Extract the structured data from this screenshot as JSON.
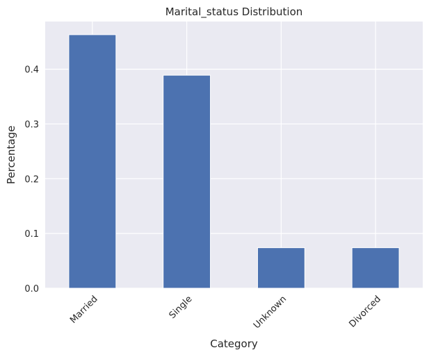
{
  "chart_data": {
    "type": "bar",
    "title": "Marital_status Distribution",
    "xlabel": "Category",
    "ylabel": "Percentage",
    "categories": [
      "Married",
      "Single",
      "Unknown",
      "Divorced"
    ],
    "values": [
      0.463,
      0.389,
      0.074,
      0.074
    ],
    "ylim": [
      0,
      0.487
    ],
    "yticks": [
      "0.0",
      "0.1",
      "0.2",
      "0.3",
      "0.4"
    ],
    "grid": true,
    "colors": {
      "bar": "#4c72b0",
      "plot_background": "#eaeaf2",
      "grid": "#ffffff"
    }
  }
}
